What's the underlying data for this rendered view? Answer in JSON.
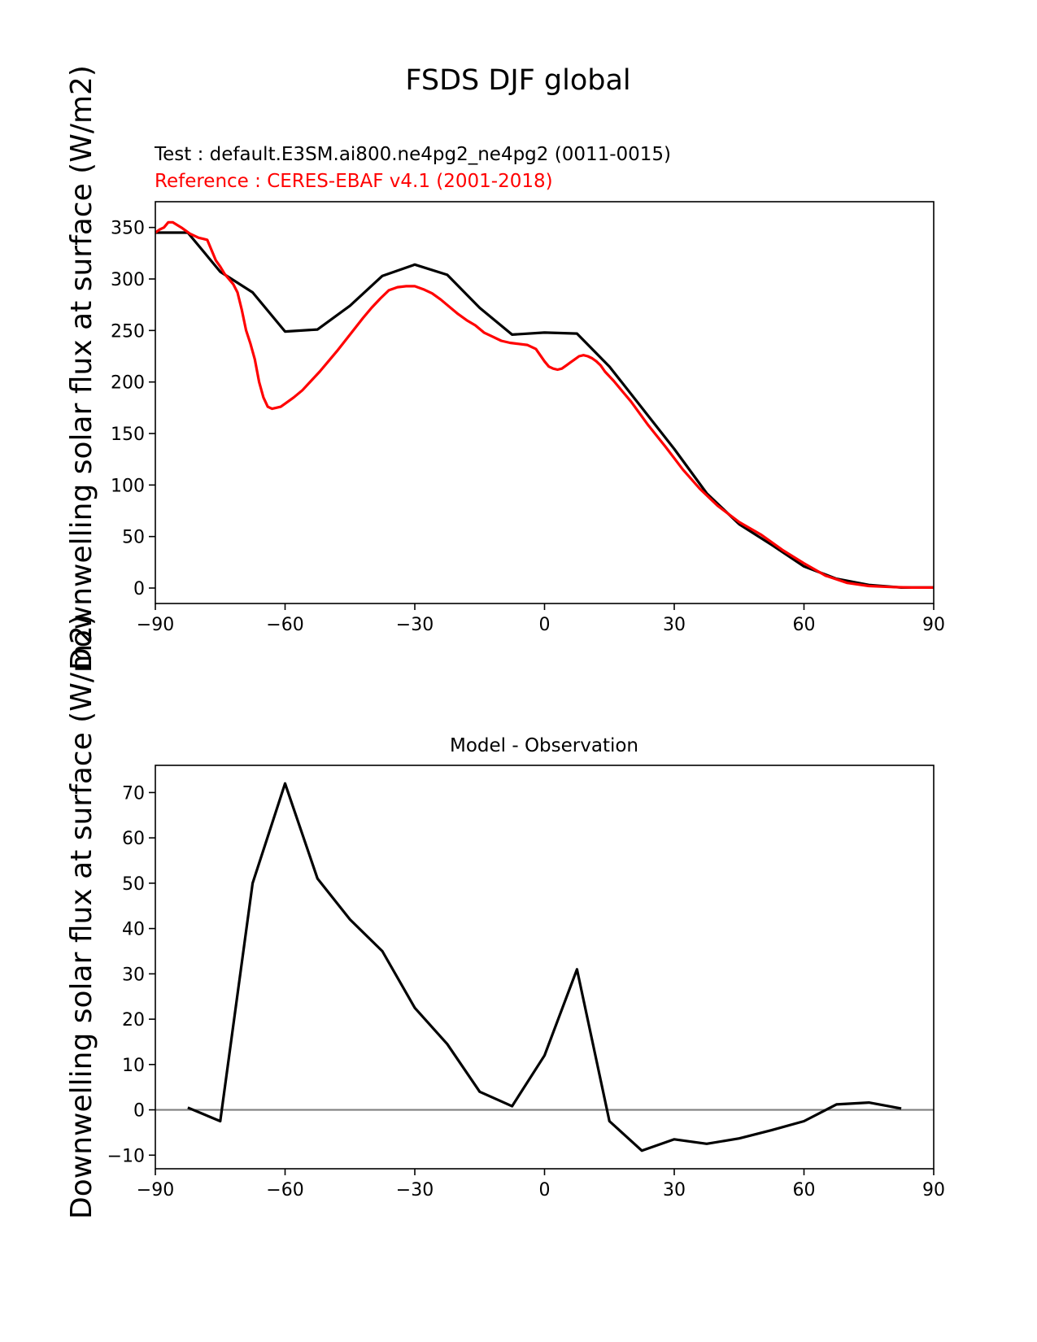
{
  "figure": {
    "title": "FSDS DJF global",
    "test_label": "Test : default.E3SM.ai800.ne4pg2_ne4pg2 (0011-0015)",
    "reference_label": "Reference : CERES-EBAF v4.1 (2001-2018)",
    "colors": {
      "test": "#000000",
      "reference": "#ff0000",
      "zero_line": "#808080"
    }
  },
  "chart_data": [
    {
      "type": "line",
      "title": "",
      "xlabel": "",
      "ylabel": "Downwelling solar flux at surface (W/m2)",
      "xlim": [
        -90,
        90
      ],
      "ylim": [
        -15,
        375
      ],
      "xticks": [
        -90,
        -60,
        -30,
        0,
        30,
        60,
        90
      ],
      "yticks": [
        0,
        50,
        100,
        150,
        200,
        250,
        300,
        350
      ],
      "series": [
        {
          "key": "test",
          "color": "#000000",
          "x": [
            -90,
            -82.5,
            -75,
            -67.5,
            -60,
            -52.5,
            -45,
            -37.5,
            -30,
            -22.5,
            -15,
            -7.5,
            0,
            7.5,
            15,
            22.5,
            30,
            37.5,
            45,
            52.5,
            60,
            67.5,
            75,
            82.5,
            90
          ],
          "y": [
            345,
            345,
            307,
            287,
            249,
            251,
            274,
            303,
            314,
            304,
            272,
            246,
            248,
            247,
            215,
            175,
            135,
            92,
            62,
            42,
            21,
            9,
            3,
            0.5,
            0.5
          ]
        },
        {
          "key": "reference",
          "color": "#ff0000",
          "x": [
            -90,
            -89,
            -88,
            -87,
            -86,
            -84,
            -82,
            -80,
            -79,
            -78,
            -77,
            -76,
            -75,
            -74,
            -72,
            -71,
            -70,
            -69,
            -68,
            -67,
            -66,
            -65,
            -64,
            -63,
            -62,
            -61,
            -60,
            -58,
            -56,
            -54,
            -52,
            -50,
            -48,
            -45,
            -42,
            -40,
            -38,
            -36,
            -34,
            -32,
            -30,
            -28,
            -26,
            -24,
            -22,
            -20,
            -18,
            -16,
            -14,
            -12,
            -10,
            -8,
            -6,
            -4,
            -2,
            -1,
            0,
            1,
            2,
            3,
            4,
            5,
            6,
            7,
            8,
            9,
            10,
            11,
            12,
            13,
            14,
            16,
            18,
            20,
            24,
            28,
            32,
            36,
            40,
            45,
            50,
            55,
            60,
            65,
            70,
            75,
            80,
            85,
            90
          ],
          "y": [
            345,
            348,
            350,
            355,
            355,
            350,
            344,
            340,
            339,
            338,
            328,
            318,
            312,
            305,
            295,
            287,
            270,
            250,
            237,
            222,
            200,
            185,
            176,
            174,
            175,
            176,
            179,
            185,
            192,
            201,
            210,
            220,
            230,
            246,
            262,
            272,
            281,
            289,
            292,
            293,
            293,
            290,
            286,
            280,
            273,
            266,
            260,
            255,
            248,
            244,
            240,
            238,
            237,
            236,
            232,
            226,
            220,
            215,
            213,
            212,
            213,
            216,
            219,
            222,
            225,
            226,
            225,
            223,
            220,
            216,
            210,
            201,
            191,
            181,
            158,
            137,
            115,
            96,
            80,
            64,
            52,
            37,
            24,
            12,
            5,
            2,
            1,
            0.5,
            0.5
          ]
        }
      ]
    },
    {
      "type": "line",
      "title": "Model - Observation",
      "xlabel": "",
      "ylabel": "Downwelling solar flux at surface (W/m2)",
      "xlim": [
        -90,
        90
      ],
      "ylim": [
        -13,
        76
      ],
      "xticks": [
        -90,
        -60,
        -30,
        0,
        30,
        60,
        90
      ],
      "yticks": [
        -10,
        0,
        10,
        20,
        30,
        40,
        50,
        60,
        70
      ],
      "zero_line": true,
      "series": [
        {
          "key": "difference",
          "color": "#000000",
          "x": [
            -82.5,
            -75,
            -67.5,
            -60,
            -52.5,
            -45,
            -37.5,
            -30,
            -22.5,
            -15,
            -7.5,
            0,
            7.5,
            15,
            22.5,
            30,
            37.5,
            45,
            52.5,
            60,
            67.5,
            75,
            82.5
          ],
          "y": [
            0.5,
            -2.5,
            50,
            72,
            51,
            42,
            35,
            22.5,
            14.5,
            4,
            0.8,
            12,
            31,
            -2.5,
            -9,
            -6.5,
            -7.5,
            -6.3,
            -4.5,
            -2.5,
            1.2,
            1.6,
            0.3
          ]
        }
      ]
    }
  ]
}
